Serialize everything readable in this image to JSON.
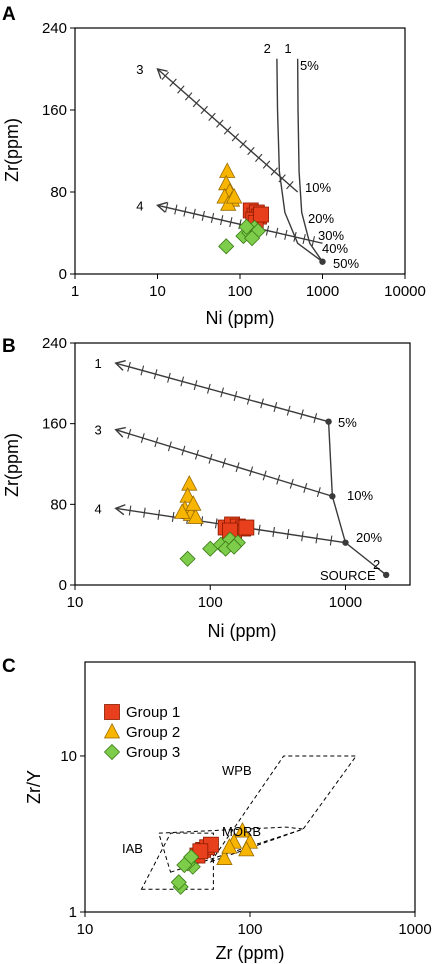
{
  "colors": {
    "group1": "#e8401c",
    "group2": "#f7b500",
    "group3": "#7dcc4a",
    "curve": "#3a3a3a"
  },
  "chart_data": [
    {
      "panel": "A",
      "type": "scatter",
      "xscale": "log",
      "xlim": [
        1,
        10000
      ],
      "ylim": [
        0,
        240
      ],
      "xlabel": "Ni (ppm)",
      "ylabel": "Zr(ppm)",
      "xticks": [
        "1",
        "10",
        "100",
        "1000",
        "10000"
      ],
      "yticks": [
        "0",
        "80",
        "160",
        "240"
      ],
      "series": [
        {
          "name": "Group 1",
          "marker": "square",
          "points": [
            [
              135,
              62
            ],
            [
              150,
              57
            ],
            [
              160,
              60
            ],
            [
              170,
              56
            ],
            [
              145,
              53
            ],
            [
              155,
              50
            ],
            [
              180,
              58
            ]
          ]
        },
        {
          "name": "Group 2",
          "marker": "triangle",
          "points": [
            [
              70,
              100
            ],
            [
              68,
              88
            ],
            [
              75,
              80
            ],
            [
              65,
              75
            ],
            [
              80,
              72
            ],
            [
              72,
              68
            ],
            [
              85,
              75
            ]
          ]
        },
        {
          "name": "Group 3",
          "marker": "diamond",
          "points": [
            [
              68,
              27
            ],
            [
              110,
              37
            ],
            [
              130,
              40
            ],
            [
              150,
              45
            ],
            [
              165,
              42
            ],
            [
              140,
              35
            ],
            [
              120,
              46
            ]
          ]
        }
      ],
      "curves": [
        {
          "label": "1",
          "points": [
            [
              500,
              210
            ],
            [
              505,
              160
            ],
            [
              520,
              100
            ],
            [
              560,
              60
            ],
            [
              700,
              30
            ],
            [
              1000,
              12
            ]
          ]
        },
        {
          "label": "2",
          "points": [
            [
              280,
              210
            ],
            [
              285,
              160
            ],
            [
              300,
              100
            ],
            [
              350,
              60
            ],
            [
              500,
              30
            ],
            [
              1000,
              12
            ]
          ]
        },
        {
          "label": "3",
          "points": [
            [
              500,
              80
            ],
            [
              10,
              200
            ]
          ],
          "hatched": true
        },
        {
          "label": "4",
          "points": [
            [
              1000,
              30
            ],
            [
              10,
              67
            ]
          ],
          "hatched": true
        }
      ],
      "annotations": [
        "5%",
        "10%",
        "20%",
        "30%",
        "40%",
        "50%"
      ]
    },
    {
      "panel": "B",
      "type": "scatter",
      "xscale": "log",
      "xlim": [
        10,
        3000
      ],
      "ylim": [
        0,
        240
      ],
      "xlabel": "Ni (ppm)",
      "ylabel": "Zr(ppm)",
      "xticks": [
        "10",
        "100",
        "1000"
      ],
      "yticks": [
        "0",
        "80",
        "160",
        "240"
      ],
      "series": [
        {
          "name": "Group 1",
          "marker": "square",
          "points": [
            [
              130,
              57
            ],
            [
              145,
              60
            ],
            [
              160,
              58
            ],
            [
              175,
              56
            ],
            [
              150,
              52
            ],
            [
              185,
              57
            ],
            [
              140,
              54
            ]
          ]
        },
        {
          "name": "Group 2",
          "marker": "triangle",
          "points": [
            [
              70,
              100
            ],
            [
              68,
              88
            ],
            [
              65,
              75
            ],
            [
              72,
              70
            ],
            [
              78,
              67
            ],
            [
              75,
              80
            ],
            [
              62,
              72
            ]
          ]
        },
        {
          "name": "Group 3",
          "marker": "diamond",
          "points": [
            [
              68,
              26
            ],
            [
              100,
              36
            ],
            [
              120,
              40
            ],
            [
              140,
              45
            ],
            [
              160,
              42
            ],
            [
              130,
              36
            ],
            [
              150,
              38
            ]
          ]
        }
      ],
      "curves": [
        {
          "label": "1",
          "points": [
            [
              750,
              162
            ],
            [
              20,
              220
            ]
          ],
          "hatched": true
        },
        {
          "label": "2",
          "points": [
            [
              2000,
              10
            ],
            [
              1000,
              42
            ],
            [
              800,
              88
            ],
            [
              750,
              162
            ]
          ]
        },
        {
          "label": "3",
          "points": [
            [
              800,
              88
            ],
            [
              20,
              154
            ]
          ],
          "hatched": true
        },
        {
          "label": "4",
          "points": [
            [
              1000,
              42
            ],
            [
              20,
              76
            ]
          ],
          "hatched": true
        }
      ],
      "annotations": [
        "5%",
        "10%",
        "20%",
        "SOURCE"
      ]
    },
    {
      "panel": "C",
      "type": "scatter",
      "xscale": "log",
      "yscale": "log",
      "xlim": [
        10,
        1000
      ],
      "ylim": [
        1,
        40
      ],
      "xlabel": "Zr (ppm)",
      "ylabel": "Zr/Y",
      "xticks": [
        "10",
        "100",
        "1000"
      ],
      "yticks": [
        "1",
        "10"
      ],
      "series": [
        {
          "name": "Group 1",
          "marker": "square",
          "points": [
            [
              48,
              2.3
            ],
            [
              52,
              2.5
            ],
            [
              55,
              2.6
            ],
            [
              58,
              2.7
            ],
            [
              50,
              2.45
            ]
          ]
        },
        {
          "name": "Group 2",
          "marker": "triangle",
          "points": [
            [
              90,
              3.3
            ],
            [
              80,
              2.8
            ],
            [
              100,
              2.8
            ],
            [
              95,
              2.5
            ],
            [
              70,
              2.2
            ],
            [
              75,
              2.6
            ]
          ]
        },
        {
          "name": "Group 3",
          "marker": "diamond",
          "points": [
            [
              38,
              1.45
            ],
            [
              37,
              1.55
            ],
            [
              45,
              1.95
            ],
            [
              42,
              2.05
            ],
            [
              44,
              2.25
            ],
            [
              40,
              2.0
            ]
          ]
        }
      ],
      "fields": [
        {
          "label": "WPB",
          "points": [
            [
              58,
              2.1
            ],
            [
              210,
              3.4
            ],
            [
              440,
              10
            ],
            [
              160,
              10
            ]
          ]
        },
        {
          "label": "MORB",
          "points": [
            [
              33,
              1.8
            ],
            [
              210,
              3.4
            ],
            [
              165,
              3.5
            ],
            [
              28,
              3.2
            ]
          ]
        },
        {
          "label": "IAB",
          "points": [
            [
              22,
              1.4
            ],
            [
              60,
              1.4
            ],
            [
              60,
              3.2
            ],
            [
              33,
              3.2
            ]
          ]
        }
      ],
      "legend": {
        "placement": "upper-left",
        "entries": [
          "Group 1",
          "Group 2",
          "Group 3"
        ]
      }
    }
  ]
}
